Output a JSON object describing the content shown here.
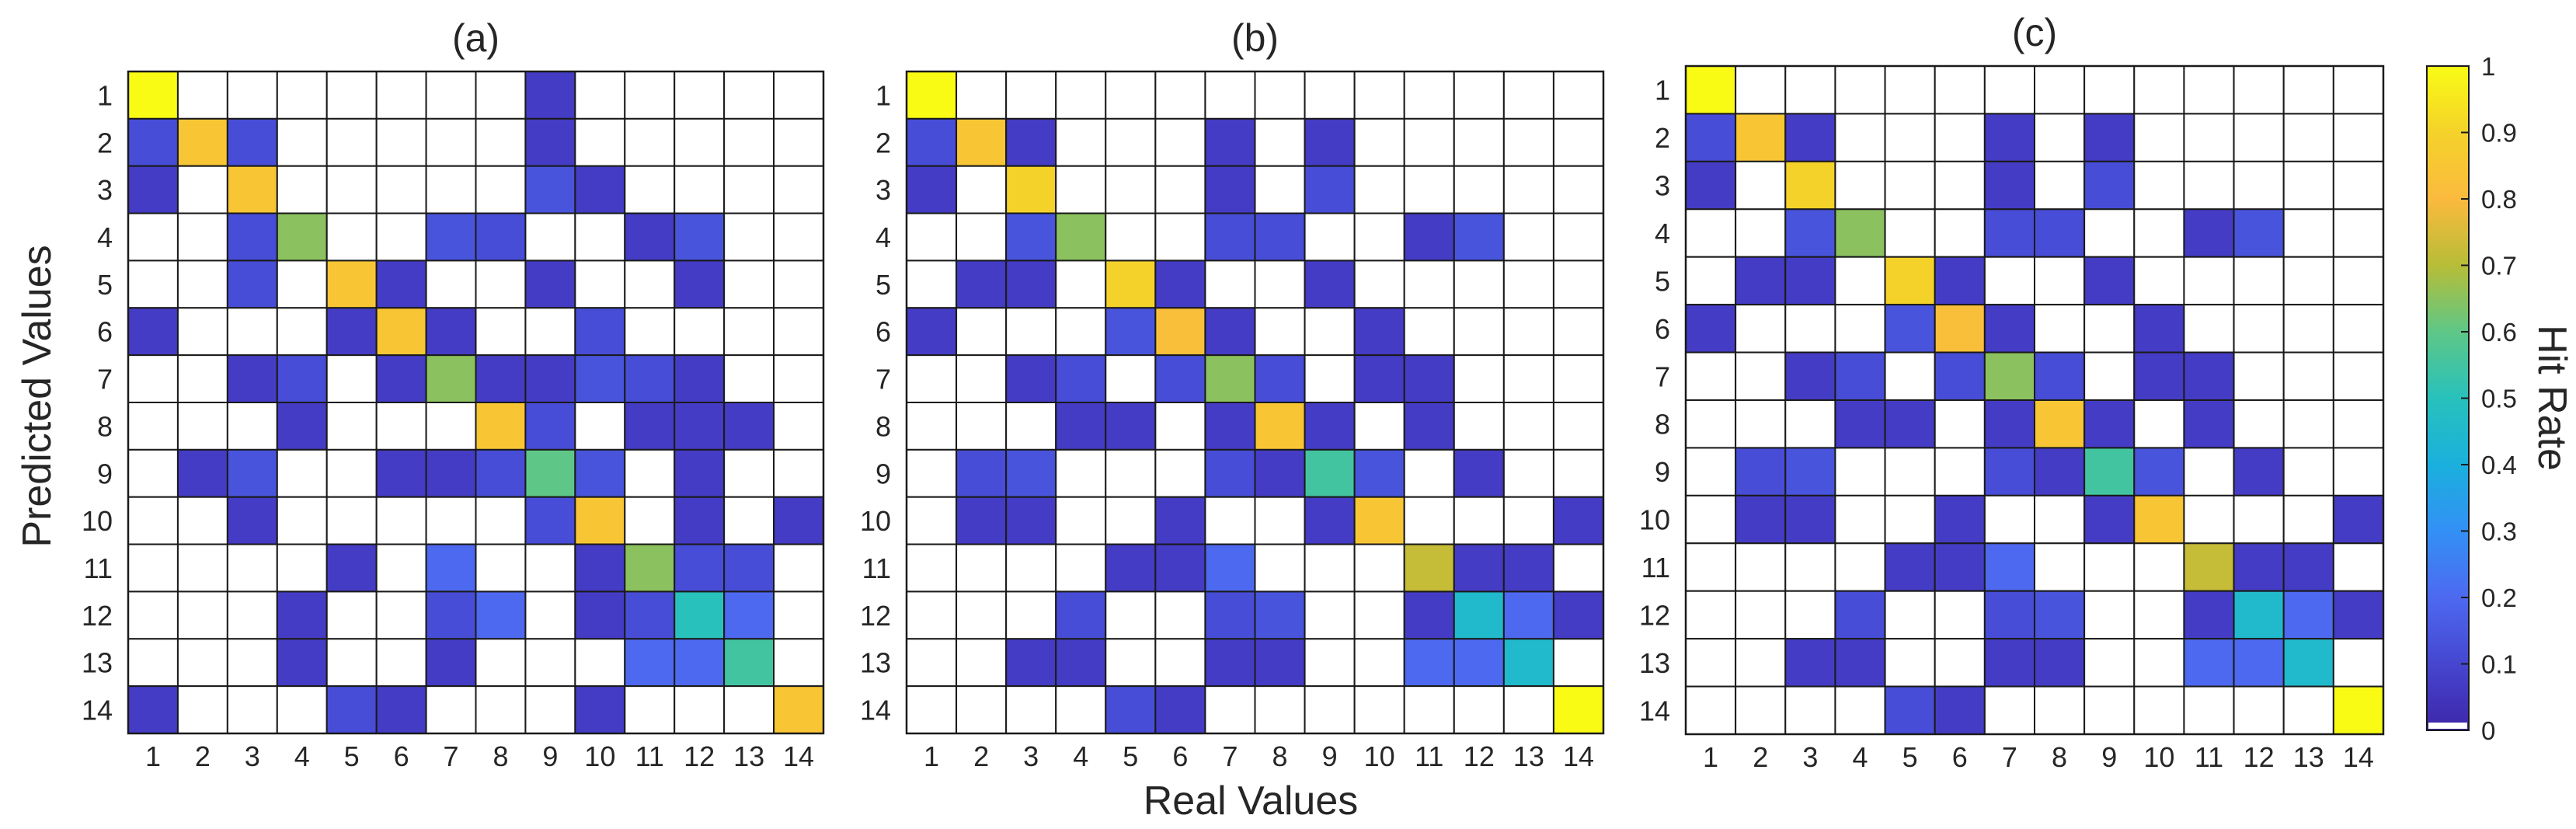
{
  "chart_data": {
    "type": "heatmap",
    "xlabel": "Real Values",
    "ylabel": "Predicted Values",
    "colorbar": {
      "label": "Hit Rate",
      "range": [
        0,
        1
      ],
      "ticks": [
        "0",
        "0.1",
        "0.2",
        "0.3",
        "0.4",
        "0.5",
        "0.6",
        "0.7",
        "0.8",
        "0.9",
        "1"
      ]
    },
    "colors": {
      "c0": "#3e26a8",
      "c1": "#4646d0",
      "c2": "#4d69f0",
      "c3": "#3390f5",
      "c4": "#1ab0dd",
      "c5": "#28c1bb",
      "c6": "#5ec787",
      "c7": "#b7bd37",
      "c8": "#fbba3e",
      "c9": "#f4d22a",
      "c10": "#f9fb15",
      "empty": "#ffffff",
      "grid": "#1a1a1a"
    },
    "panels": [
      {
        "title": "(a)",
        "labels": [
          "1",
          "2",
          "3",
          "4",
          "5",
          "6",
          "7",
          "8",
          "9",
          "10",
          "11",
          "12",
          "13",
          "14"
        ],
        "matrix": [
          [
            1.0,
            0,
            0,
            0,
            0,
            0,
            0,
            0,
            0.07,
            0,
            0,
            0,
            0,
            0
          ],
          [
            0.12,
            0.85,
            0.12,
            0,
            0,
            0,
            0,
            0,
            0.07,
            0,
            0,
            0,
            0,
            0
          ],
          [
            0.07,
            0,
            0.85,
            0,
            0,
            0,
            0,
            0,
            0.14,
            0.07,
            0,
            0,
            0,
            0
          ],
          [
            0,
            0,
            0.12,
            0.65,
            0,
            0,
            0.14,
            0.12,
            0,
            0,
            0.07,
            0.14,
            0,
            0
          ],
          [
            0,
            0,
            0.12,
            0,
            0.85,
            0.07,
            0,
            0,
            0.07,
            0,
            0,
            0.07,
            0,
            0
          ],
          [
            0.07,
            0,
            0,
            0,
            0.07,
            0.85,
            0.07,
            0,
            0,
            0.12,
            0,
            0,
            0,
            0
          ],
          [
            0,
            0,
            0.07,
            0.12,
            0,
            0.07,
            0.65,
            0.07,
            0.07,
            0.14,
            0.12,
            0.07,
            0,
            0
          ],
          [
            0,
            0,
            0,
            0.07,
            0,
            0,
            0,
            0.85,
            0.12,
            0,
            0.07,
            0.07,
            0.07,
            0
          ],
          [
            0,
            0.07,
            0.14,
            0,
            0,
            0.07,
            0.07,
            0.12,
            0.6,
            0.14,
            0,
            0.07,
            0,
            0
          ],
          [
            0,
            0,
            0.07,
            0,
            0,
            0,
            0,
            0,
            0.12,
            0.85,
            0,
            0.07,
            0,
            0.07
          ],
          [
            0,
            0,
            0,
            0,
            0.07,
            0,
            0.2,
            0,
            0,
            0.07,
            0.65,
            0.12,
            0.12,
            0
          ],
          [
            0,
            0,
            0,
            0.07,
            0,
            0,
            0.12,
            0.2,
            0,
            0.07,
            0.12,
            0.5,
            0.2,
            0
          ],
          [
            0,
            0,
            0,
            0.07,
            0,
            0,
            0.07,
            0,
            0,
            0,
            0.2,
            0.2,
            0.55,
            0
          ],
          [
            0.07,
            0,
            0,
            0,
            0.12,
            0.07,
            0,
            0,
            0,
            0.07,
            0,
            0,
            0,
            0.85
          ]
        ]
      },
      {
        "title": "(b)",
        "labels": [
          "1",
          "2",
          "3",
          "4",
          "5",
          "6",
          "7",
          "8",
          "9",
          "10",
          "11",
          "12",
          "13",
          "14"
        ],
        "matrix": [
          [
            1.0,
            0,
            0,
            0,
            0,
            0,
            0,
            0,
            0,
            0,
            0,
            0,
            0,
            0
          ],
          [
            0.12,
            0.85,
            0.07,
            0,
            0,
            0,
            0.07,
            0,
            0.07,
            0,
            0,
            0,
            0,
            0
          ],
          [
            0.07,
            0,
            0.9,
            0,
            0,
            0,
            0.07,
            0,
            0.12,
            0,
            0,
            0,
            0,
            0
          ],
          [
            0,
            0,
            0.14,
            0.65,
            0,
            0,
            0.12,
            0.12,
            0,
            0,
            0.07,
            0.14,
            0,
            0
          ],
          [
            0,
            0.07,
            0.07,
            0,
            0.9,
            0.07,
            0,
            0,
            0.07,
            0,
            0,
            0,
            0,
            0
          ],
          [
            0.07,
            0,
            0,
            0,
            0.14,
            0.82,
            0.07,
            0,
            0,
            0.07,
            0,
            0,
            0,
            0
          ],
          [
            0,
            0,
            0.07,
            0.12,
            0,
            0.12,
            0.65,
            0.12,
            0,
            0.07,
            0.07,
            0,
            0,
            0
          ],
          [
            0,
            0,
            0,
            0.07,
            0.07,
            0,
            0.07,
            0.85,
            0.07,
            0,
            0.07,
            0,
            0,
            0
          ],
          [
            0,
            0.12,
            0.14,
            0,
            0,
            0,
            0.12,
            0.07,
            0.55,
            0.14,
            0,
            0.07,
            0,
            0
          ],
          [
            0,
            0.07,
            0.07,
            0,
            0,
            0.07,
            0,
            0,
            0.07,
            0.85,
            0,
            0,
            0,
            0.07
          ],
          [
            0,
            0,
            0,
            0,
            0.07,
            0.07,
            0.2,
            0,
            0,
            0,
            0.72,
            0.07,
            0.07,
            0
          ],
          [
            0,
            0,
            0,
            0.12,
            0,
            0,
            0.12,
            0.14,
            0,
            0,
            0.07,
            0.45,
            0.2,
            0.07
          ],
          [
            0,
            0,
            0.07,
            0.07,
            0,
            0,
            0.07,
            0.07,
            0,
            0,
            0.2,
            0.2,
            0.45,
            0
          ],
          [
            0,
            0,
            0,
            0,
            0.12,
            0.07,
            0,
            0,
            0,
            0,
            0,
            0,
            0,
            1.0
          ]
        ]
      },
      {
        "title": "(c)",
        "labels": [
          "1",
          "2",
          "3",
          "4",
          "5",
          "6",
          "7",
          "8",
          "9",
          "10",
          "11",
          "12",
          "13",
          "14"
        ],
        "matrix": [
          [
            1.0,
            0,
            0,
            0,
            0,
            0,
            0,
            0,
            0,
            0,
            0,
            0,
            0,
            0
          ],
          [
            0.12,
            0.85,
            0.07,
            0,
            0,
            0,
            0.07,
            0,
            0.07,
            0,
            0,
            0,
            0,
            0
          ],
          [
            0.07,
            0,
            0.9,
            0,
            0,
            0,
            0.07,
            0,
            0.12,
            0,
            0,
            0,
            0,
            0
          ],
          [
            0,
            0,
            0.14,
            0.65,
            0,
            0,
            0.12,
            0.12,
            0,
            0,
            0.07,
            0.14,
            0,
            0
          ],
          [
            0,
            0.07,
            0.07,
            0,
            0.9,
            0.07,
            0,
            0,
            0.07,
            0,
            0,
            0,
            0,
            0
          ],
          [
            0.07,
            0,
            0,
            0,
            0.14,
            0.82,
            0.07,
            0,
            0,
            0.07,
            0,
            0,
            0,
            0
          ],
          [
            0,
            0,
            0.07,
            0.12,
            0,
            0.12,
            0.65,
            0.12,
            0,
            0.07,
            0.07,
            0,
            0,
            0
          ],
          [
            0,
            0,
            0,
            0.07,
            0.07,
            0,
            0.07,
            0.85,
            0.07,
            0,
            0.07,
            0,
            0,
            0
          ],
          [
            0,
            0.12,
            0.14,
            0,
            0,
            0,
            0.12,
            0.07,
            0.55,
            0.14,
            0,
            0.07,
            0,
            0
          ],
          [
            0,
            0.07,
            0.07,
            0,
            0,
            0.07,
            0,
            0,
            0.07,
            0.85,
            0,
            0,
            0,
            0.07
          ],
          [
            0,
            0,
            0,
            0,
            0.07,
            0.07,
            0.2,
            0,
            0,
            0,
            0.72,
            0.07,
            0.07,
            0
          ],
          [
            0,
            0,
            0,
            0.12,
            0,
            0,
            0.12,
            0.14,
            0,
            0,
            0.07,
            0.45,
            0.2,
            0.07
          ],
          [
            0,
            0,
            0.07,
            0.07,
            0,
            0,
            0.07,
            0.07,
            0,
            0,
            0.2,
            0.2,
            0.45,
            0
          ],
          [
            0,
            0,
            0,
            0,
            0.12,
            0.07,
            0,
            0,
            0,
            0,
            0,
            0,
            0,
            1.0
          ]
        ]
      }
    ]
  }
}
